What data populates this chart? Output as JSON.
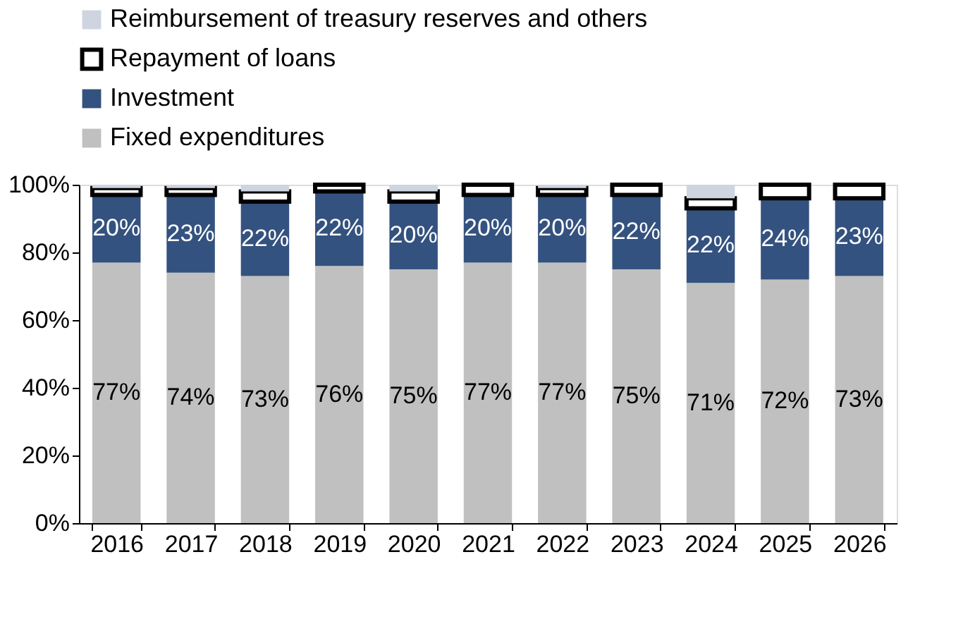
{
  "chart_data": {
    "type": "bar",
    "stacked": true,
    "categories": [
      "2016",
      "2017",
      "2018",
      "2019",
      "2020",
      "2021",
      "2022",
      "2023",
      "2024",
      "2025",
      "2026"
    ],
    "series": [
      {
        "name": "Fixed expenditures",
        "color": "#c0c0c0",
        "values": [
          77,
          74,
          73,
          76,
          75,
          77,
          77,
          75,
          71,
          72,
          73
        ],
        "value_labels": [
          "77%",
          "74%",
          "73%",
          "76%",
          "75%",
          "77%",
          "77%",
          "75%",
          "71%",
          "72%",
          "73%"
        ]
      },
      {
        "name": "Investment",
        "color": "#34527f",
        "values": [
          20,
          23,
          22,
          22,
          20,
          20,
          20,
          22,
          22,
          24,
          23
        ],
        "value_labels": [
          "20%",
          "23%",
          "22%",
          "22%",
          "20%",
          "20%",
          "20%",
          "22%",
          "22%",
          "24%",
          "23%"
        ]
      },
      {
        "name": "Repayment of loans",
        "color": "#ffffff",
        "values": [
          2,
          2,
          3,
          2,
          3,
          3,
          2,
          3,
          3,
          4,
          4
        ]
      },
      {
        "name": "Reimbursement of treasury reserves and others",
        "color": "#ced4e0",
        "values": [
          1,
          1,
          2,
          0,
          2,
          0,
          1,
          0,
          4,
          0,
          0
        ]
      }
    ],
    "ylim": [
      0,
      100
    ],
    "yticks": [
      {
        "value": 0,
        "label": "0%"
      },
      {
        "value": 20,
        "label": "20%"
      },
      {
        "value": 40,
        "label": "40%"
      },
      {
        "value": 60,
        "label": "60%"
      },
      {
        "value": 80,
        "label": "80%"
      },
      {
        "value": 100,
        "label": "100%"
      }
    ],
    "grid": false,
    "legend": "top"
  }
}
